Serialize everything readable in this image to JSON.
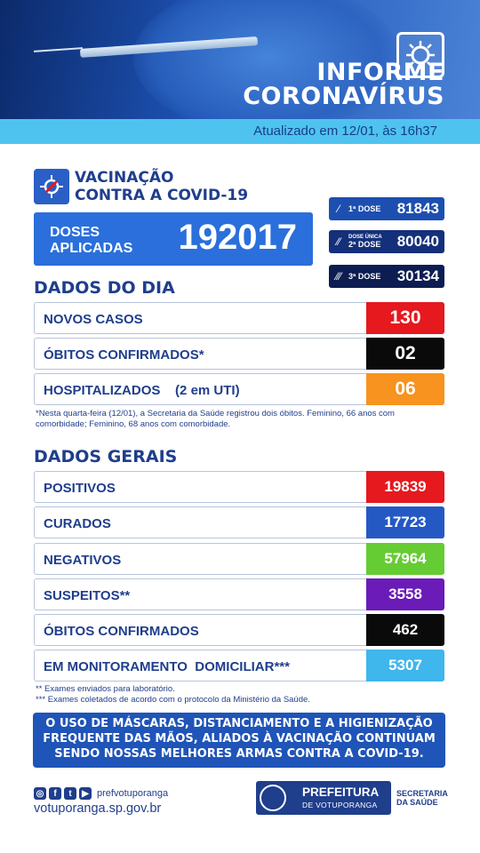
{
  "header": {
    "title_line1": "INFORME",
    "title_line2": "CORONAVÍRUS",
    "updated": "Atualizado em 12/01, às 16h37"
  },
  "vaccination": {
    "title_line1": "VACINAÇÃO",
    "title_line2": "CONTRA A COVID-19",
    "doses_label_line1": "DOSES",
    "doses_label_line2": "APLICADAS",
    "doses_total": "192017",
    "dose_pills": [
      {
        "label": "1ª DOSE",
        "sublabel": "",
        "value": "81843"
      },
      {
        "label": "2ª DOSE",
        "sublabel": "DOSE ÚNICA",
        "value": "80040"
      },
      {
        "label": "3ª DOSE",
        "sublabel": "",
        "value": "30134"
      }
    ]
  },
  "daily": {
    "title": "DADOS DO DIA",
    "rows": [
      {
        "label": "NOVOS CASOS",
        "value": "130",
        "color": "#e5191e"
      },
      {
        "label": "ÓBITOS CONFIRMADOS*",
        "value": "02",
        "color": "#0a0a0a"
      },
      {
        "label": "HOSPITALIZADOS    (2 em UTI)",
        "value": "06",
        "color": "#f7931e"
      }
    ],
    "note": "*Nesta quarta-feira (12/01), a Secretaria da Saúde registrou dois óbitos. Feminino, 66 anos com comorbidade; Feminino, 68 anos com comorbidade."
  },
  "general": {
    "title": "DADOS GERAIS",
    "rows": [
      {
        "label": "POSITIVOS",
        "value": "19839",
        "color": "#e5191e"
      },
      {
        "label": "CURADOS",
        "value": "17723",
        "color": "#2459c4"
      },
      {
        "label": "NEGATIVOS",
        "value": "57964",
        "color": "#66cc33"
      },
      {
        "label": "SUSPEITOS**",
        "value": "3558",
        "color": "#6a1bb8"
      },
      {
        "label": "ÓBITOS CONFIRMADOS",
        "value": "462",
        "color": "#0a0a0a"
      },
      {
        "label": "EM MONITORAMENTO  DOMICILIAR***",
        "value": "5307",
        "color": "#3fb6ec"
      }
    ],
    "note1": "** Exames enviados para laboratório.",
    "note2": "*** Exames coletados de acordo com o protocolo da Ministério da Saúde."
  },
  "banner": {
    "line1": "O USO DE MÁSCARAS, DISTANCIAMENTO E A HIGIENIZAÇÃO",
    "line2": "FREQUENTE DAS MÃOS, ALIADOS À VACINAÇÃO CONTINUAM",
    "line3": "SENDO NOSSAS MELHORES ARMAS CONTRA A COVID-19."
  },
  "footer": {
    "handle": "prefvotuporanga",
    "site": "votuporanga.sp.gov.br",
    "pref_line1": "PREFEITURA",
    "pref_line2": "DE VOTUPORANGA",
    "saude_line1": "SECRETARIA",
    "saude_line2": "DA SAÚDE"
  }
}
